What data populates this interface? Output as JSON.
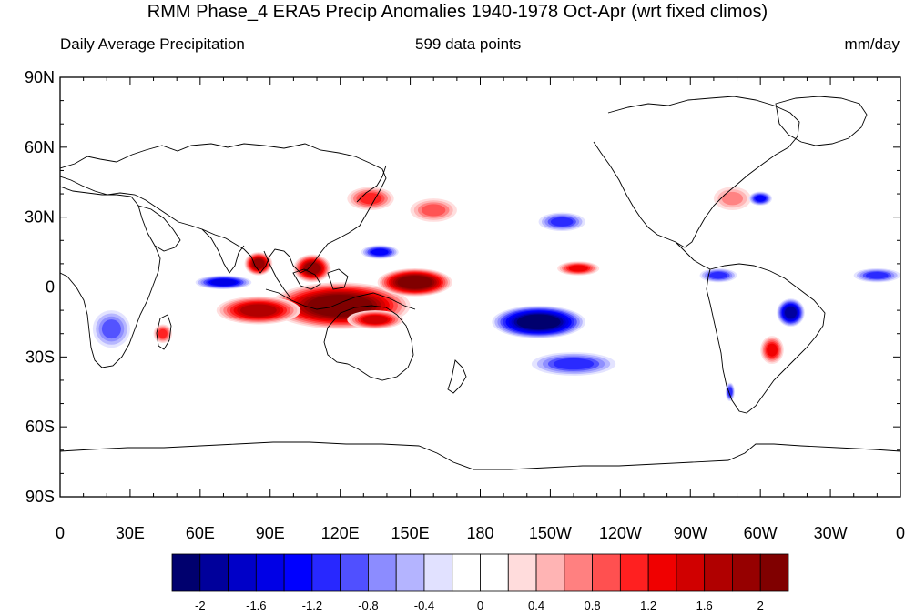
{
  "header": {
    "title": "RMM Phase_4 ERA5 Precip Anomalies 1940-1978 Oct-Apr (wrt fixed climos)",
    "left_string": "Daily Average Precipitation",
    "center_string": "599 data points",
    "units": "mm/day"
  },
  "map": {
    "projection": "cylindrical-equidistant",
    "lon_range": [
      0,
      360
    ],
    "lat_range": [
      -90,
      90
    ],
    "lat_ticks": [
      {
        "value": 90,
        "label": "90N"
      },
      {
        "value": 60,
        "label": "60N"
      },
      {
        "value": 30,
        "label": "30N"
      },
      {
        "value": 0,
        "label": "0"
      },
      {
        "value": -30,
        "label": "30S"
      },
      {
        "value": -60,
        "label": "60S"
      },
      {
        "value": -90,
        "label": "90S"
      }
    ],
    "lon_ticks": [
      {
        "value": 0,
        "label": "0"
      },
      {
        "value": 30,
        "label": "30E"
      },
      {
        "value": 60,
        "label": "60E"
      },
      {
        "value": 90,
        "label": "90E"
      },
      {
        "value": 120,
        "label": "120E"
      },
      {
        "value": 150,
        "label": "150E"
      },
      {
        "value": 180,
        "label": "180"
      },
      {
        "value": 210,
        "label": "150W"
      },
      {
        "value": 240,
        "label": "120W"
      },
      {
        "value": 270,
        "label": "90W"
      },
      {
        "value": 300,
        "label": "60W"
      },
      {
        "value": 330,
        "label": "30W"
      },
      {
        "value": 360,
        "label": "0"
      }
    ],
    "anomaly_features": [
      {
        "name": "maritime-continent-wet",
        "lon": 120,
        "lat": -8,
        "rlon": 30,
        "rlat": 10,
        "value": 2.2
      },
      {
        "name": "west-pacific-wet",
        "lon": 152,
        "lat": 2,
        "rlon": 16,
        "rlat": 6,
        "value": 2.2
      },
      {
        "name": "indian-ocean-south-wet",
        "lon": 85,
        "lat": -10,
        "rlon": 18,
        "rlat": 6,
        "value": 1.6
      },
      {
        "name": "bay-of-bengal-wet",
        "lon": 85,
        "lat": 10,
        "rlon": 6,
        "rlat": 5,
        "value": 1.8
      },
      {
        "name": "south-china-sea-wet",
        "lon": 108,
        "lat": 8,
        "rlon": 8,
        "rlat": 6,
        "value": 1.8
      },
      {
        "name": "indonesia-south-wet",
        "lon": 135,
        "lat": -14,
        "rlon": 12,
        "rlat": 4,
        "value": 1.4
      },
      {
        "name": "japan-wet",
        "lon": 133,
        "lat": 38,
        "rlon": 10,
        "rlat": 5,
        "value": 1.0
      },
      {
        "name": "nw-pacific-wet",
        "lon": 160,
        "lat": 33,
        "rlon": 10,
        "rlat": 5,
        "value": 0.8
      },
      {
        "name": "central-pacific-itcz-wet",
        "lon": 222,
        "lat": 8,
        "rlon": 9,
        "rlat": 3,
        "value": 1.2
      },
      {
        "name": "madagascar-wet",
        "lon": 44,
        "lat": -20,
        "rlon": 4,
        "rlat": 4,
        "value": 1.0
      },
      {
        "name": "south-america-se-wet",
        "lon": 305,
        "lat": -27,
        "rlon": 5,
        "rlat": 6,
        "value": 1.2
      },
      {
        "name": "north-atlantic-wet",
        "lon": 288,
        "lat": 38,
        "rlon": 8,
        "rlat": 5,
        "value": 0.6
      },
      {
        "name": "spcz-dry",
        "lon": 205,
        "lat": -15,
        "rlon": 20,
        "rlat": 7,
        "value": -2.2
      },
      {
        "name": "south-pacific-dry",
        "lon": 220,
        "lat": -33,
        "rlon": 18,
        "rlat": 5,
        "value": -0.9
      },
      {
        "name": "western-indian-ocean-dry",
        "lon": 70,
        "lat": 2,
        "rlon": 12,
        "rlat": 3,
        "value": -1.4
      },
      {
        "name": "philippine-sea-dry",
        "lon": 137,
        "lat": 15,
        "rlon": 8,
        "rlat": 3,
        "value": -1.2
      },
      {
        "name": "amazon-dry",
        "lon": 313,
        "lat": -11,
        "rlon": 6,
        "rlat": 6,
        "value": -1.8
      },
      {
        "name": "east-pacific-north-dry",
        "lon": 215,
        "lat": 28,
        "rlon": 10,
        "rlat": 4,
        "value": -1.0
      },
      {
        "name": "caribbean-dry",
        "lon": 282,
        "lat": 5,
        "rlon": 8,
        "rlat": 3,
        "value": -1.0
      },
      {
        "name": "gulf-stream-dry",
        "lon": 300,
        "lat": 38,
        "rlon": 5,
        "rlat": 3,
        "value": -1.2
      },
      {
        "name": "equatorial-atlantic-dry",
        "lon": 350,
        "lat": 5,
        "rlon": 10,
        "rlat": 3,
        "value": -0.9
      },
      {
        "name": "southern-africa-dry",
        "lon": 22,
        "lat": -18,
        "rlon": 8,
        "rlat": 8,
        "value": -0.8
      },
      {
        "name": "patagonia-dry",
        "lon": 287,
        "lat": -45,
        "rlon": 2,
        "rlat": 4,
        "value": -1.0
      }
    ]
  },
  "colorbar": {
    "levels": [
      "-2",
      "-1.6",
      "-1.2",
      "-0.8",
      "-0.4",
      "0",
      "0.4",
      "0.8",
      "1.2",
      "1.6",
      "2"
    ],
    "colors": [
      "#00006e",
      "#00009b",
      "#0000c8",
      "#0000e6",
      "#0000ff",
      "#2828ff",
      "#5050ff",
      "#8c8cff",
      "#b4b4ff",
      "#e1e1ff",
      "#ffffff",
      "#ffffff",
      "#ffdcdc",
      "#ffb4b4",
      "#ff8080",
      "#ff5050",
      "#ff2020",
      "#f00000",
      "#d00000",
      "#b00000",
      "#960000",
      "#800000"
    ]
  }
}
